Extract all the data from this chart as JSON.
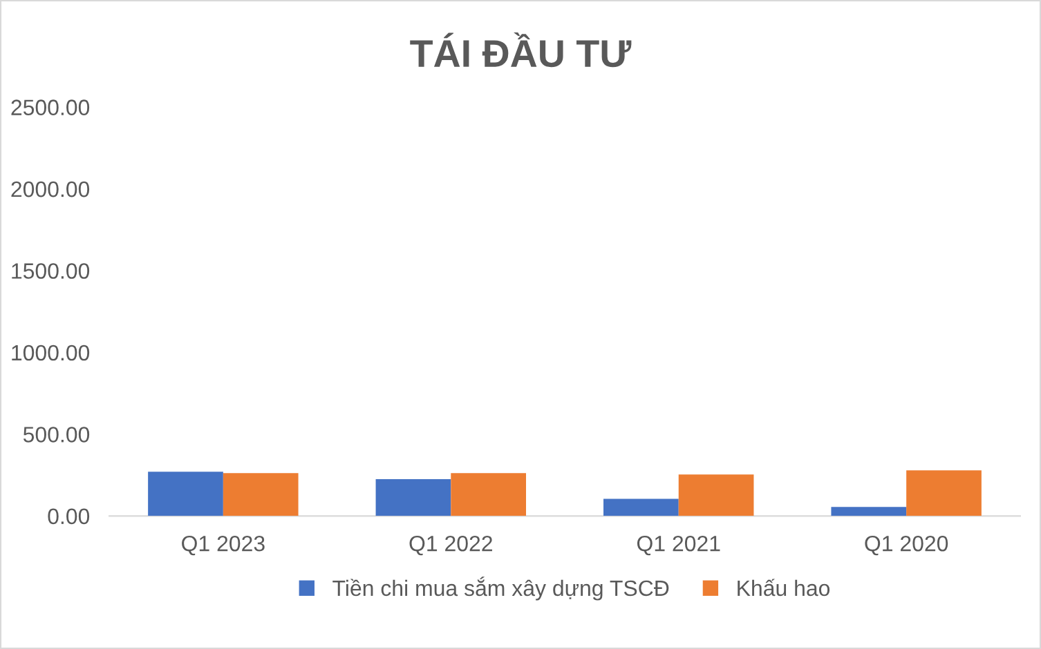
{
  "chart_data": {
    "type": "bar",
    "title": "TÁI ĐẦU TƯ",
    "categories": [
      "Q1 2023",
      "Q1 2022",
      "Q1 2021",
      "Q1 2020"
    ],
    "series": [
      {
        "name": "Tiền chi mua sắm xây dựng TSCĐ",
        "color": "#4472c4",
        "values": [
          270,
          225,
          105,
          55
        ]
      },
      {
        "name": "Khấu hao",
        "color": "#ed7d31",
        "values": [
          262,
          262,
          254,
          279
        ]
      }
    ],
    "ylim": [
      0,
      2500
    ],
    "yticks": [
      {
        "value": 0,
        "label": "0.00"
      },
      {
        "value": 500,
        "label": "500.00"
      },
      {
        "value": 1000,
        "label": "1000.00"
      },
      {
        "value": 1500,
        "label": "1500.00"
      },
      {
        "value": 2000,
        "label": "2000.00"
      },
      {
        "value": 2500,
        "label": "2500.00"
      }
    ],
    "grid": false,
    "legend": "bottom"
  }
}
